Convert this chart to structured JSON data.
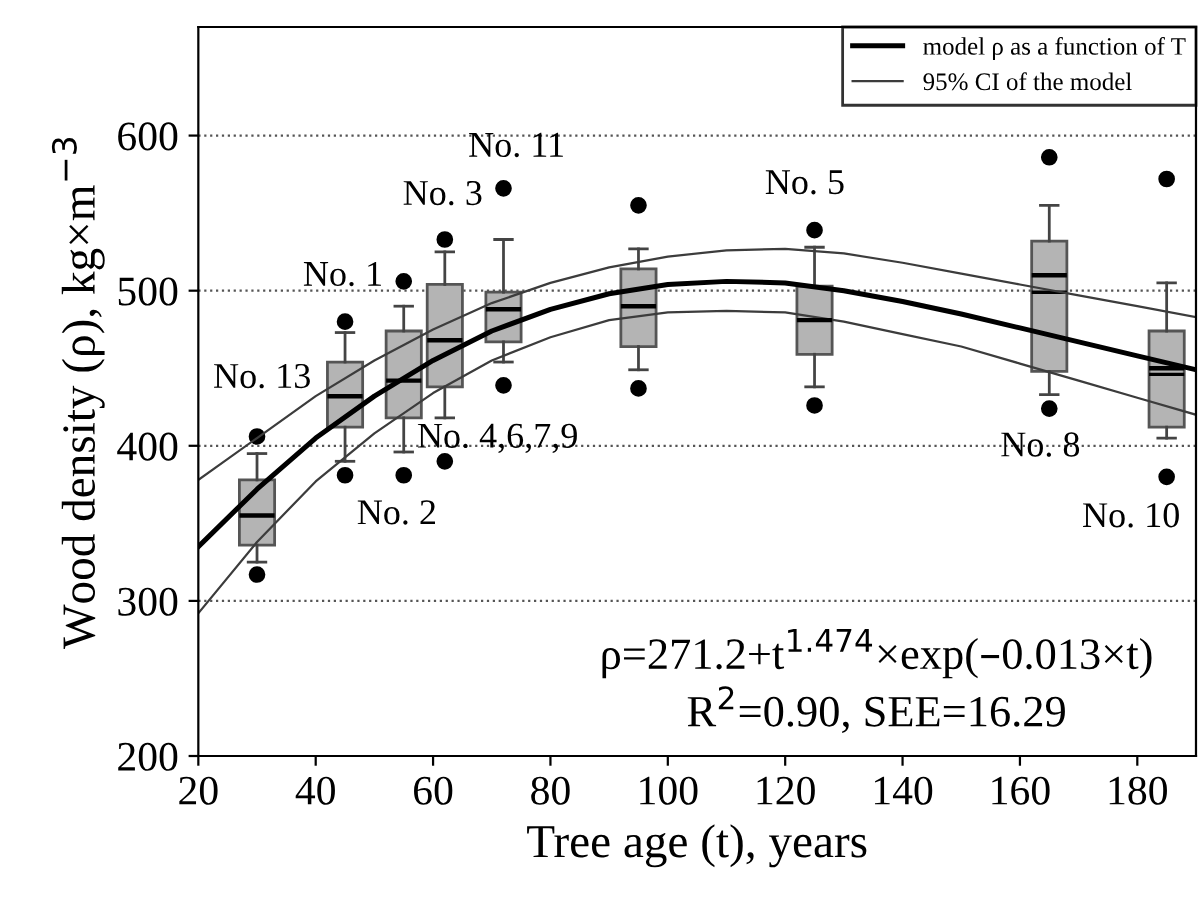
{
  "chart_data": {
    "type": "box",
    "xlabel": "Tree age (t), years",
    "ylabel": "Wood density (ρ), kg×m$^{−3}$",
    "x": [
      30,
      45,
      55,
      62,
      72,
      95,
      125,
      165,
      185
    ],
    "color": "#b4b4b4",
    "boxes": [
      {
        "low": 325,
        "q1": 336,
        "median": 355,
        "q3": 378,
        "high": 395,
        "outliers": [
          406,
          317
        ]
      },
      {
        "low": 390,
        "q1": 412,
        "median": 432,
        "q3": 454,
        "high": 473,
        "outliers": [
          480,
          381
        ]
      },
      {
        "low": 396,
        "q1": 418,
        "median": 442,
        "q3": 474,
        "high": 490,
        "outliers": [
          506,
          381
        ]
      },
      {
        "low": 418,
        "q1": 438,
        "median": 468,
        "q3": 504,
        "high": 525,
        "outliers": [
          533,
          390
        ]
      },
      {
        "low": 454,
        "q1": 467,
        "median": 488,
        "q3": 499,
        "high": 533,
        "outliers": [
          566,
          439
        ]
      },
      {
        "low": 449,
        "q1": 464,
        "median": 490,
        "q3": 514,
        "high": 527,
        "outliers": [
          555,
          437
        ]
      },
      {
        "low": 438,
        "q1": 459,
        "median": 481,
        "q3": 503,
        "high": 528,
        "outliers": [
          539,
          426
        ]
      },
      {
        "low": 433,
        "q1": 448,
        "median": 510,
        "q3": 532,
        "high": 555,
        "mean": 499,
        "outliers": [
          586,
          424
        ]
      },
      {
        "low": 405,
        "q1": 412,
        "median": 450,
        "q3": 474,
        "high": 505,
        "mean": 446,
        "outliers": [
          572,
          380
        ]
      }
    ],
    "series": [
      {
        "type": "line",
        "name": "model ρ as a function of T",
        "color": "#000000",
        "x": [
          20,
          30,
          40,
          50,
          60,
          70,
          80,
          90,
          100,
          110,
          120,
          130,
          140,
          150,
          160,
          170,
          180,
          190
        ],
        "values": [
          335,
          372,
          405,
          432,
          455,
          474,
          488,
          498,
          504,
          506,
          505,
          500,
          493,
          485,
          476,
          467,
          458,
          449
        ]
      },
      {
        "type": "line",
        "name": "95% CI of the model",
        "color": "#3c3c3c",
        "x": [
          20,
          30,
          40,
          50,
          60,
          70,
          80,
          90,
          100,
          110,
          120,
          130,
          140,
          150,
          160,
          170,
          180,
          190
        ],
        "values": [
          378,
          405,
          432,
          455,
          475,
          492,
          505,
          515,
          522,
          526,
          527,
          524,
          518,
          511,
          504,
          497,
          490,
          483
        ]
      },
      {
        "type": "line",
        "color": "#3c3c3c",
        "x": [
          20,
          30,
          40,
          50,
          60,
          70,
          80,
          90,
          100,
          110,
          120,
          130,
          140,
          150,
          160,
          170,
          180,
          190
        ],
        "values": [
          292,
          338,
          377,
          408,
          434,
          455,
          470,
          481,
          486,
          487,
          486,
          480,
          472,
          464,
          453,
          442,
          431,
          420
        ]
      }
    ],
    "annotations": [
      "No. 13",
      "No. 1",
      "No. 2",
      "No. 3",
      "No. 11",
      "No. 4,6,7,9",
      "No. 5",
      "No. 8",
      "No. 10",
      "ρ=271.2+t$^{1.474}$×exp(–0.013×t)",
      "R$^{2}$=0.90, SEE=16.29"
    ],
    "xlim": [
      20,
      190
    ],
    "xticks": [
      20,
      40,
      60,
      80,
      100,
      120,
      140,
      160,
      180
    ],
    "ylim": [
      200,
      670
    ],
    "yticks": [
      200,
      300,
      400,
      500,
      600
    ],
    "grid": "y",
    "legend": "top right"
  }
}
